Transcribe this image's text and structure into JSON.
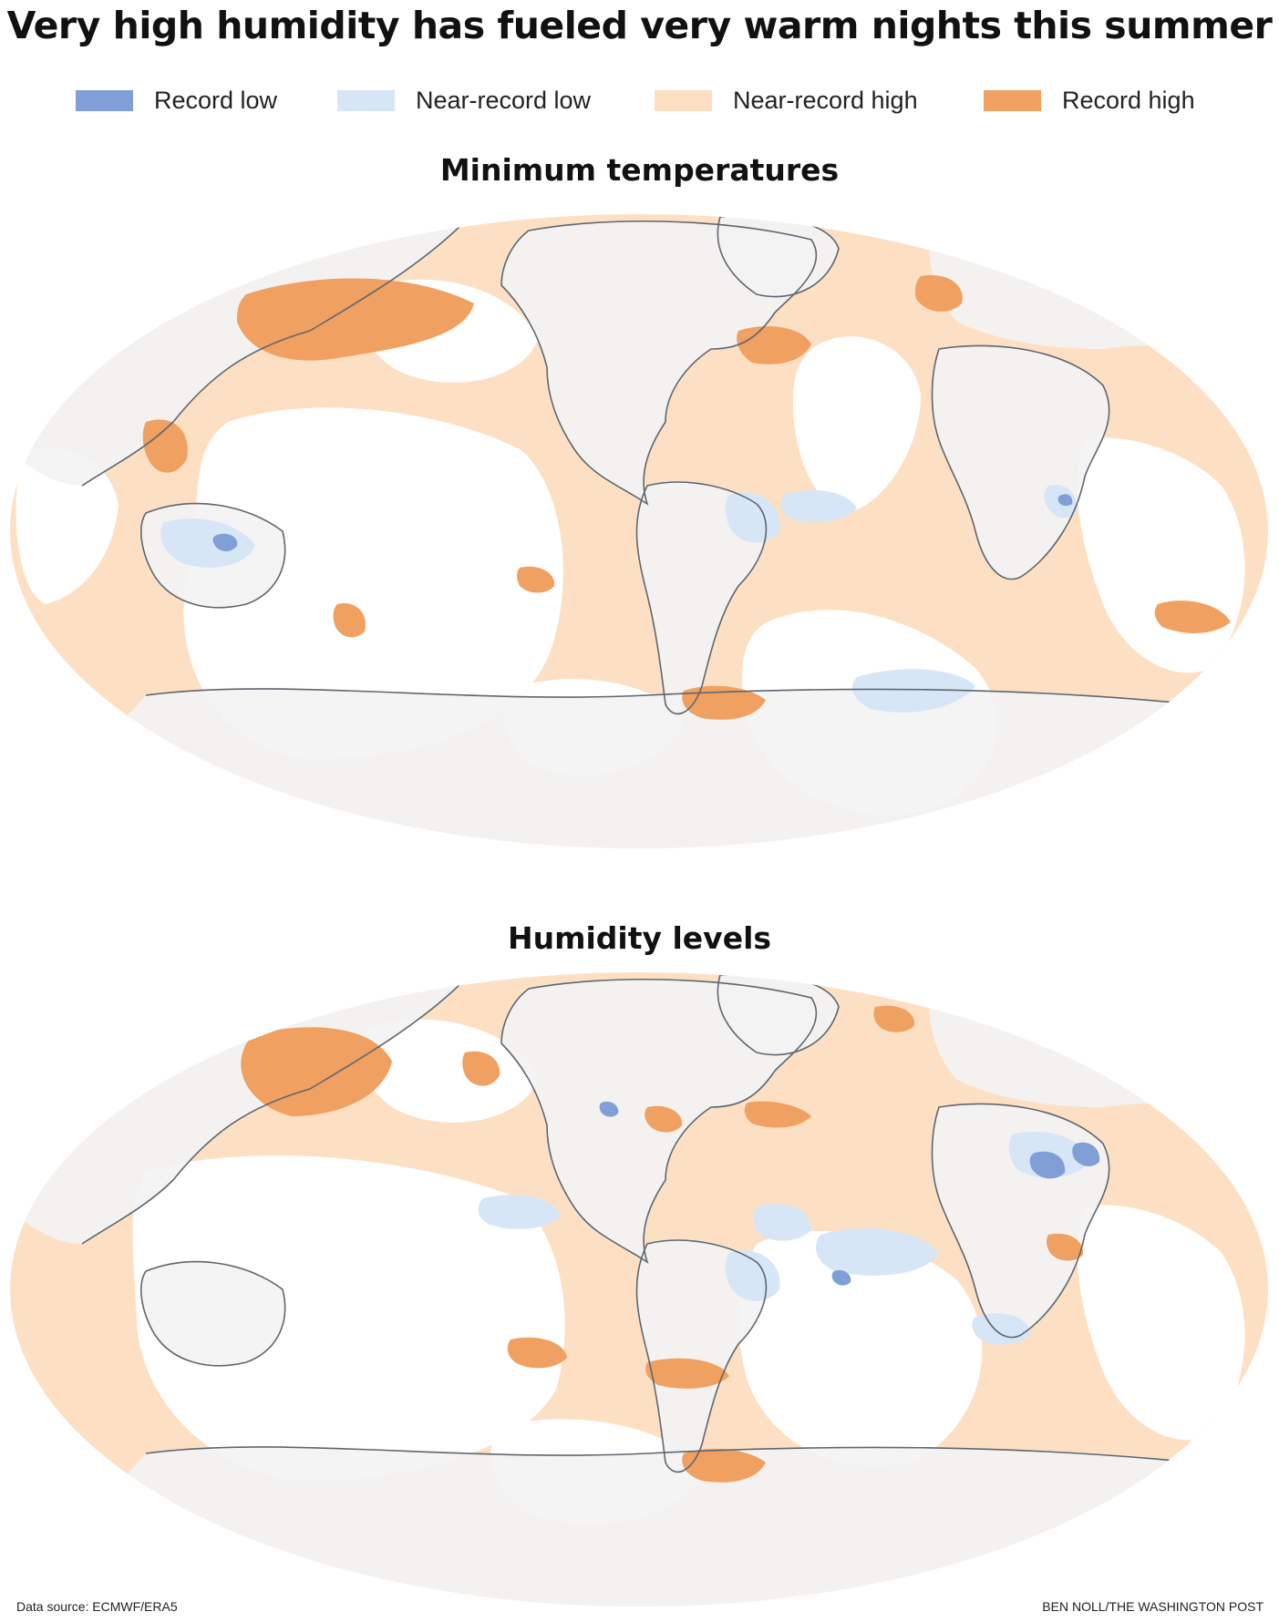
{
  "title": "Very high humidity has fueled very warm nights this summer",
  "legend": [
    {
      "label": "Record low",
      "color": "#7f9fd6"
    },
    {
      "label": "Near-record low",
      "color": "#d6e6f7"
    },
    {
      "label": "Near-record high",
      "color": "#fde0c4"
    },
    {
      "label": "Record high",
      "color": "#f0a060"
    }
  ],
  "colors": {
    "land_base": "#f3f3f3",
    "ocean_base": "#fde0c4",
    "coastline": "#5f6670"
  },
  "panels": [
    {
      "title": "Minimum temperatures"
    },
    {
      "title": "Humidity levels"
    }
  ],
  "footer": {
    "source": "Data source: ECMWF/ERA5",
    "credit": "BEN NOLL/THE WASHINGTON POST"
  }
}
